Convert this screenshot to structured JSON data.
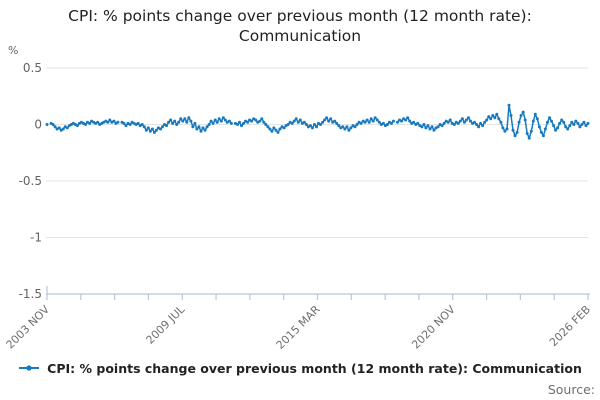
{
  "title_lines": [
    "CPI: % points change over previous month (12 month rate):",
    "Communication"
  ],
  "y_axis_unit_label": "%",
  "legend": {
    "marker_icon": "line-with-dot-icon",
    "label": "CPI: % points change over previous month (12 month rate): Communication"
  },
  "source_label": "Source:",
  "colors": {
    "line": "#1879bf",
    "grid": "#e3e3e3",
    "axis": "#b9c6d8",
    "text_primary": "#222222",
    "text_muted": "#6f6f6f",
    "text_axis": "#636363"
  },
  "chart_data": {
    "type": "line",
    "title": "CPI: % points change over previous month (12 month rate): Communication",
    "ylabel": "%",
    "xlabel": "",
    "ylim": [
      -1.5,
      0.5
    ],
    "y_ticks": [
      0.5,
      0,
      -0.5,
      -1,
      -1.5
    ],
    "grid": "horizontal",
    "legend_position": "bottom",
    "x_start": "2003 NOV",
    "x_end": "2026 FEB",
    "x_frequency": "monthly",
    "x_tick_count": 17,
    "x_tick_labels": {
      "0": "2003 NOV",
      "4": "2009 JUL",
      "8": "2015 MAR",
      "12": "2020 NOV",
      "16": "2026 FEB"
    },
    "series": [
      {
        "name": "CPI: % points change over previous month (12 month rate): Communication",
        "values": [
          0,
          null,
          0.01,
          0,
          -0.02,
          -0.04,
          -0.03,
          -0.05,
          -0.04,
          -0.02,
          -0.03,
          -0.01,
          0,
          0.01,
          0,
          -0.01,
          0.01,
          0.02,
          0.01,
          0,
          0.02,
          0.01,
          0.03,
          0.02,
          0.01,
          0.02,
          0,
          0.01,
          0.02,
          0.03,
          0.02,
          0.04,
          0.02,
          0.03,
          0.01,
          0.02,
          null,
          0.02,
          0.01,
          -0.01,
          0.01,
          0,
          0.02,
          0.01,
          0,
          0.01,
          -0.01,
          0,
          -0.02,
          -0.05,
          -0.03,
          -0.06,
          -0.04,
          -0.07,
          -0.05,
          -0.03,
          -0.04,
          -0.02,
          0,
          -0.01,
          0.02,
          0.04,
          0.01,
          0.03,
          0,
          0.02,
          0.05,
          0.03,
          0.05,
          0.02,
          0.06,
          0.03,
          -0.02,
          0.01,
          -0.04,
          -0.02,
          -0.06,
          -0.03,
          -0.05,
          -0.02,
          0,
          0.03,
          0.01,
          0.04,
          0.02,
          0.05,
          0.03,
          0.06,
          0.04,
          0.02,
          0.03,
          0.01,
          null,
          0.01,
          0,
          0.02,
          -0.01,
          0.01,
          0.03,
          0.02,
          0.04,
          0.03,
          0.05,
          0.04,
          0.02,
          0.03,
          0.05,
          0.02,
          0,
          -0.02,
          -0.04,
          -0.06,
          -0.03,
          -0.05,
          -0.07,
          -0.04,
          -0.02,
          -0.03,
          -0.01,
          0,
          0.02,
          0.01,
          0.03,
          0.05,
          0.02,
          0.04,
          0.01,
          0.02,
          0,
          -0.02,
          -0.01,
          -0.03,
          0,
          -0.02,
          0.01,
          0,
          0.02,
          0.04,
          0.06,
          0.03,
          0.05,
          0.02,
          0.03,
          0.01,
          -0.01,
          -0.03,
          -0.02,
          -0.04,
          -0.02,
          -0.05,
          -0.03,
          -0.01,
          -0.02,
          0,
          0.02,
          0.01,
          0.03,
          0.02,
          0.04,
          0.02,
          0.05,
          0.03,
          0.06,
          0.04,
          0.02,
          0,
          0.01,
          -0.01,
          0,
          0.02,
          0.01,
          0.03,
          null,
          0.02,
          0.04,
          0.03,
          0.05,
          0.04,
          0.06,
          0.03,
          0.01,
          0.02,
          0,
          0.01,
          -0.01,
          -0.02,
          0,
          -0.03,
          -0.01,
          -0.04,
          -0.02,
          -0.05,
          -0.03,
          -0.02,
          0,
          -0.01,
          0.01,
          0.03,
          0.02,
          0.04,
          0.01,
          0,
          0.02,
          0.01,
          0.03,
          0.05,
          0.02,
          0.04,
          0.06,
          0.03,
          0.01,
          0.02,
          0,
          -0.02,
          0.01,
          -0.01,
          0.02,
          0.04,
          0.07,
          0.05,
          0.08,
          0.06,
          0.09,
          0.05,
          0.02,
          -0.03,
          -0.06,
          -0.04,
          0.17,
          0.08,
          -0.05,
          -0.1,
          -0.07,
          0.02,
          0.08,
          0.11,
          0.04,
          -0.08,
          -0.12,
          -0.06,
          0.03,
          0.09,
          0.05,
          -0.02,
          -0.07,
          -0.1,
          -0.04,
          0.02,
          0.06,
          0.03,
          -0.01,
          -0.05,
          -0.03,
          0.01,
          0.04,
          0.02,
          -0.02,
          -0.04,
          -0.01,
          0.02,
          0,
          0.03,
          0.01,
          -0.02,
          0,
          0.02,
          -0.01,
          0.01
        ]
      }
    ]
  }
}
